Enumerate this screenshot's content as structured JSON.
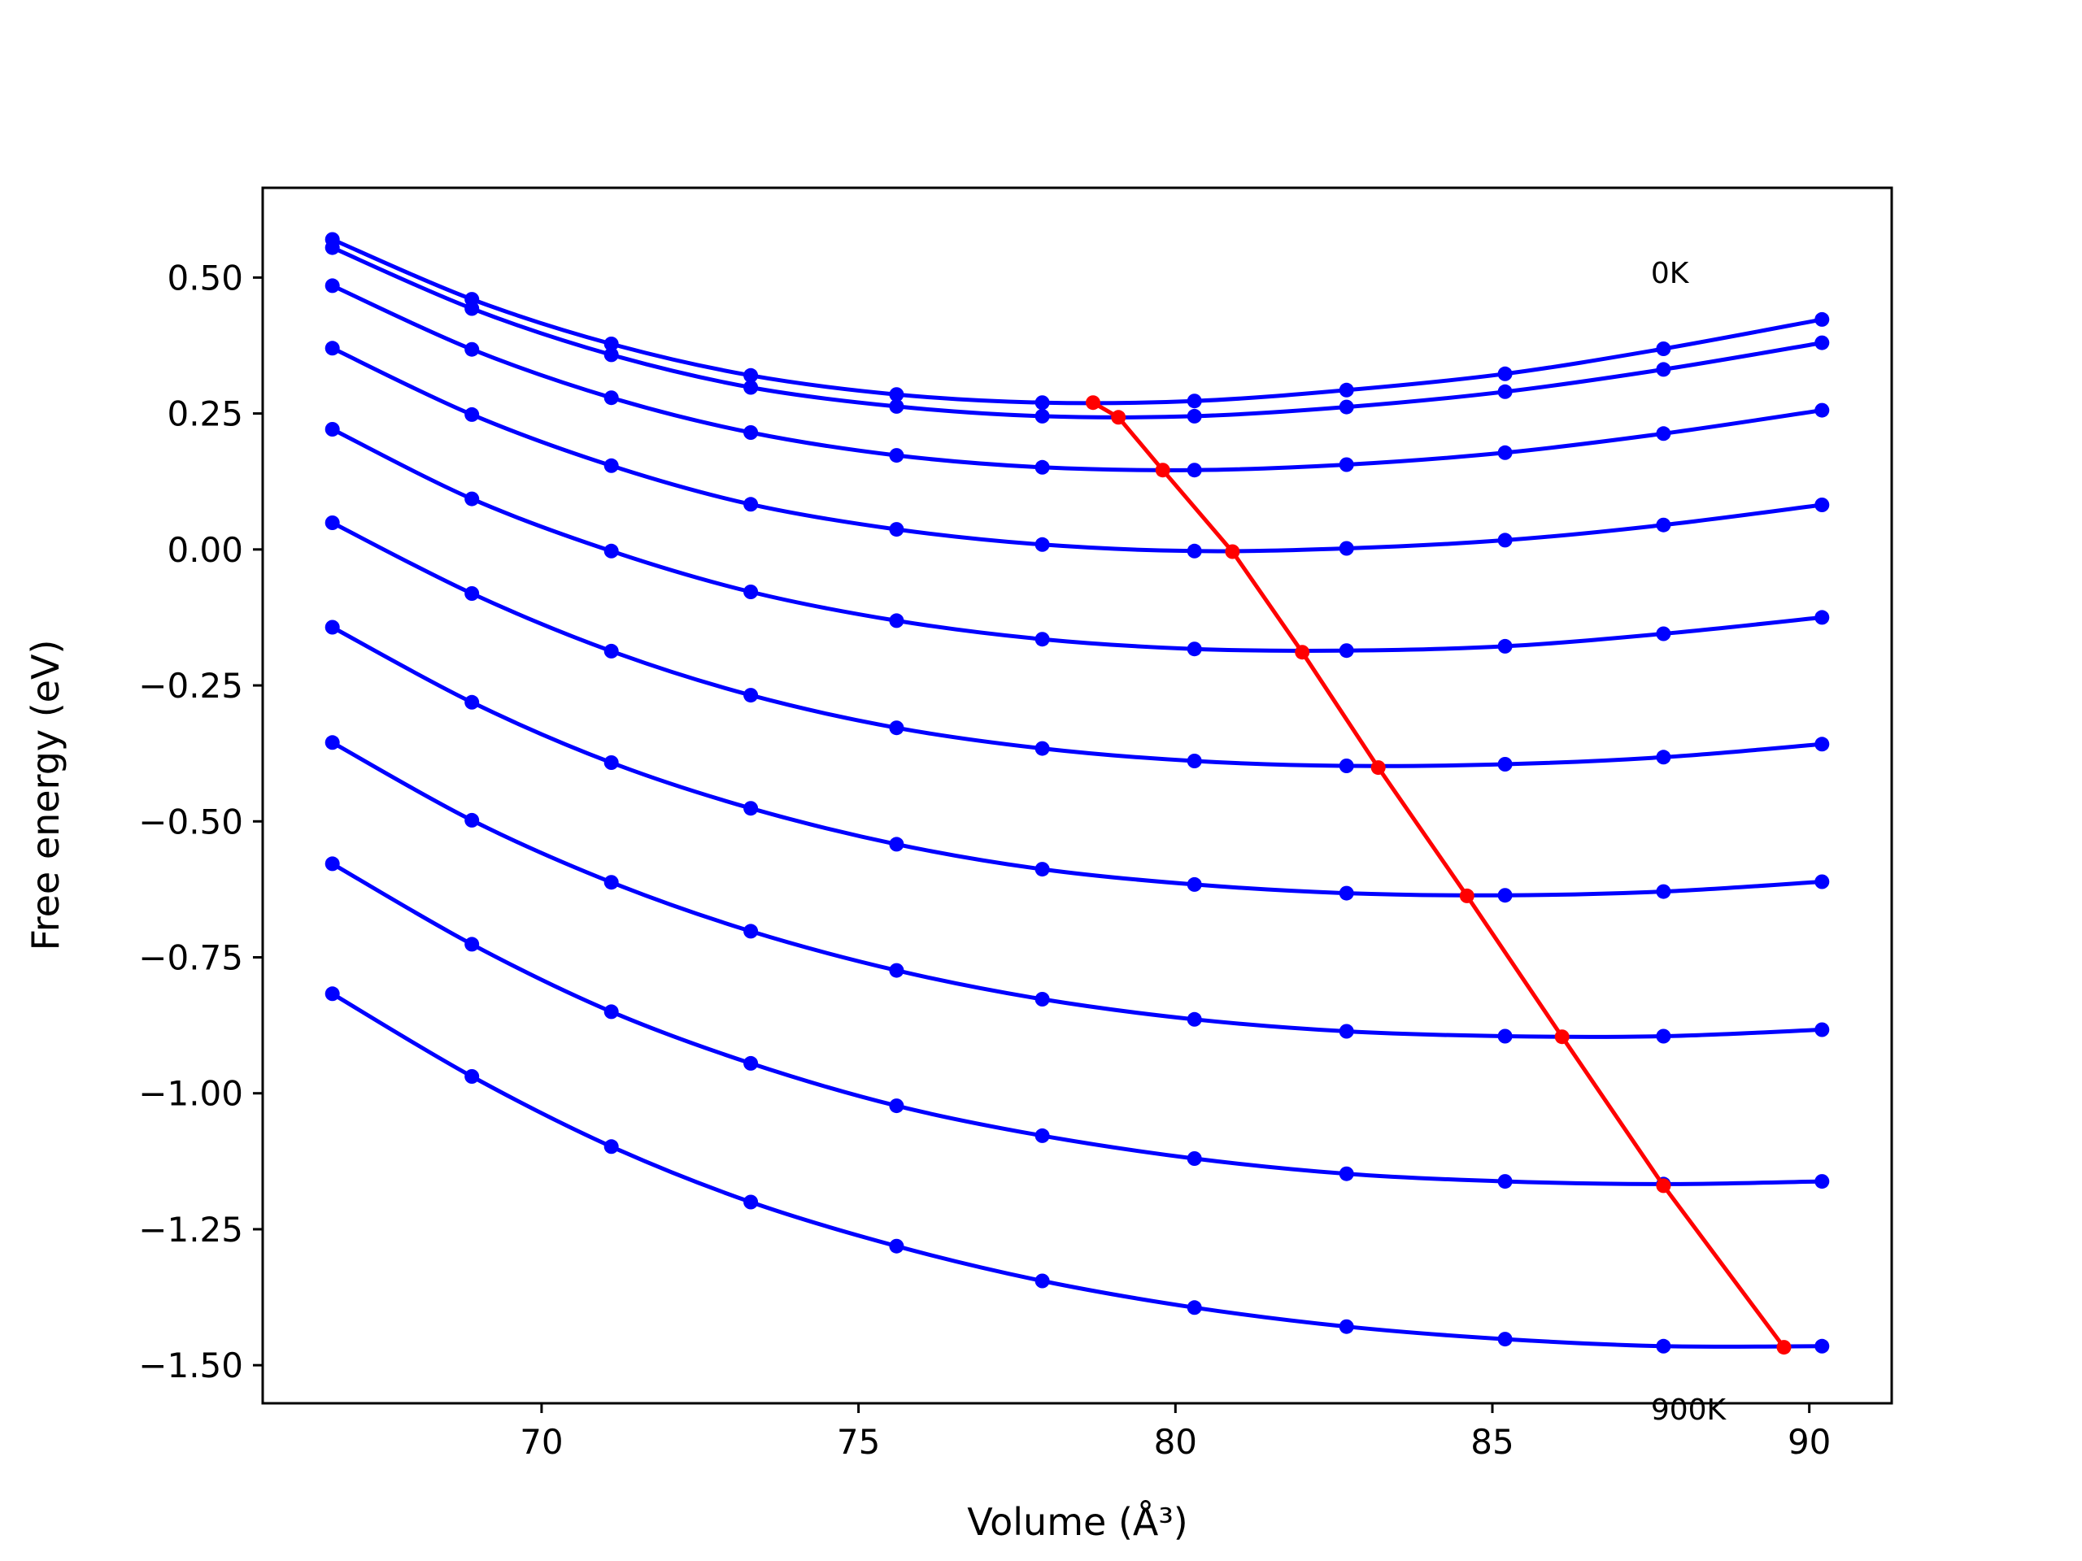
{
  "chart_data": {
    "type": "line",
    "title": "",
    "xlabel": "Volume (Å³)",
    "ylabel": "Free energy (eV)",
    "xlim": [
      65.6,
      91.3
    ],
    "ylim": [
      -1.57,
      0.665
    ],
    "grid": false,
    "legend": "none",
    "x_ticks": [
      70,
      75,
      80,
      85,
      90
    ],
    "x_tick_labels": [
      "70",
      "75",
      "80",
      "85",
      "90"
    ],
    "y_ticks": [
      0.5,
      0.25,
      0.0,
      -0.25,
      -0.5,
      -0.75,
      -1.0,
      -1.25,
      -1.5
    ],
    "y_tick_labels": [
      "0.50",
      "0.25",
      "0.00",
      "−0.25",
      "−0.50",
      "−0.75",
      "−1.00",
      "−1.25",
      "−1.50"
    ],
    "annotations": [
      {
        "text": "0K",
        "x": 87.5,
        "y": 0.49
      },
      {
        "text": "900K",
        "x": 87.5,
        "y": -1.6
      }
    ],
    "series_color": "#0000ff",
    "minimum_color": "#ff0000",
    "x": [
      66.7,
      68.9,
      71.1,
      73.3,
      75.6,
      77.9,
      80.3,
      82.7,
      85.2,
      87.7,
      90.2
    ],
    "series": [
      {
        "values": [
          0.57,
          0.46,
          0.378,
          0.32,
          0.285,
          0.27,
          0.273,
          0.293,
          0.323,
          0.369,
          0.423
        ]
      },
      {
        "values": [
          0.555,
          0.443,
          0.358,
          0.298,
          0.263,
          0.245,
          0.245,
          0.262,
          0.29,
          0.331,
          0.38
        ]
      },
      {
        "values": [
          0.485,
          0.368,
          0.279,
          0.215,
          0.173,
          0.151,
          0.146,
          0.156,
          0.178,
          0.213,
          0.256
        ]
      },
      {
        "values": [
          0.37,
          0.248,
          0.154,
          0.083,
          0.037,
          0.009,
          -0.003,
          0.002,
          0.017,
          0.045,
          0.082
        ]
      },
      {
        "values": [
          0.221,
          0.093,
          -0.003,
          -0.078,
          -0.131,
          -0.165,
          -0.183,
          -0.186,
          -0.178,
          -0.155,
          -0.125
        ]
      },
      {
        "values": [
          0.049,
          -0.081,
          -0.187,
          -0.268,
          -0.328,
          -0.366,
          -0.389,
          -0.398,
          -0.395,
          -0.382,
          -0.358
        ]
      },
      {
        "values": [
          -0.143,
          -0.281,
          -0.392,
          -0.476,
          -0.542,
          -0.588,
          -0.616,
          -0.632,
          -0.636,
          -0.629,
          -0.611
        ]
      },
      {
        "values": [
          -0.355,
          -0.498,
          -0.612,
          -0.702,
          -0.774,
          -0.827,
          -0.864,
          -0.886,
          -0.895,
          -0.895,
          -0.883
        ]
      },
      {
        "values": [
          -0.578,
          -0.726,
          -0.85,
          -0.945,
          -1.023,
          -1.078,
          -1.12,
          -1.148,
          -1.162,
          -1.167,
          -1.162
        ]
      },
      {
        "values": [
          -0.817,
          -0.969,
          -1.098,
          -1.2,
          -1.281,
          -1.345,
          -1.394,
          -1.429,
          -1.452,
          -1.465,
          -1.465
        ]
      }
    ],
    "minima": {
      "x": [
        78.7,
        79.1,
        79.8,
        80.9,
        82.0,
        83.2,
        84.6,
        86.1,
        87.7,
        89.6
      ],
      "values": [
        0.27,
        0.243,
        0.146,
        -0.004,
        -0.189,
        -0.401,
        -0.637,
        -0.896,
        -1.17,
        -1.467
      ]
    }
  }
}
